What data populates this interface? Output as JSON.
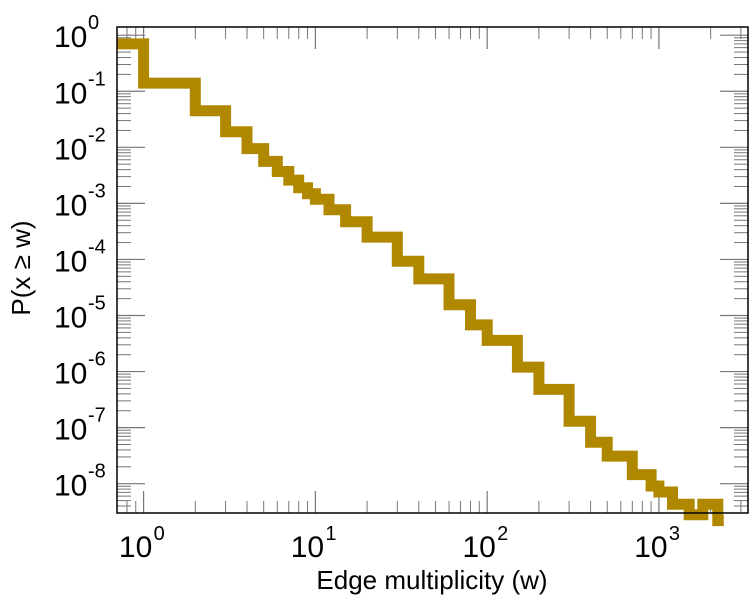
{
  "chart_data": {
    "type": "line",
    "step": true,
    "title": "",
    "xlabel": "Edge multiplicity (w)",
    "ylabel": "P(x ≥ w)",
    "xscale": "log",
    "yscale": "log",
    "xlim": [
      0.7,
      3300
    ],
    "ylim": [
      3e-09,
      1.4
    ],
    "x_ticks": [
      {
        "value": 1,
        "base": "10",
        "exp": "0"
      },
      {
        "value": 10,
        "base": "10",
        "exp": "1"
      },
      {
        "value": 100,
        "base": "10",
        "exp": "2"
      },
      {
        "value": 1000,
        "base": "10",
        "exp": "3"
      }
    ],
    "y_ticks": [
      {
        "value": 1,
        "base": "10",
        "exp": "0"
      },
      {
        "value": 0.1,
        "base": "10",
        "exp": "-1"
      },
      {
        "value": 0.01,
        "base": "10",
        "exp": "-2"
      },
      {
        "value": 0.001,
        "base": "10",
        "exp": "-3"
      },
      {
        "value": 0.0001,
        "base": "10",
        "exp": "-4"
      },
      {
        "value": 1e-05,
        "base": "10",
        "exp": "-5"
      },
      {
        "value": 1e-06,
        "base": "10",
        "exp": "-6"
      },
      {
        "value": 1e-07,
        "base": "10",
        "exp": "-7"
      },
      {
        "value": 1e-08,
        "base": "10",
        "exp": "-8"
      }
    ],
    "grid": false,
    "legend": "none",
    "series": [
      {
        "color": "#b08800",
        "x": [
          0.7,
          1,
          2,
          3,
          4,
          5,
          6,
          7,
          8,
          9,
          10,
          12,
          15,
          20,
          30,
          40,
          60,
          80,
          100,
          150,
          200,
          300,
          400,
          500,
          700,
          900,
          1000,
          1200,
          1500,
          1800,
          2200
        ],
        "y": [
          0.7,
          0.14,
          0.045,
          0.019,
          0.0095,
          0.0056,
          0.0037,
          0.0026,
          0.0019,
          0.00148,
          0.00118,
          0.00077,
          0.00047,
          0.00025,
          9.3e-05,
          4.5e-05,
          1.55e-05,
          6.8e-06,
          3.6e-06,
          1.2e-06,
          4.8e-07,
          1.3e-07,
          5.5e-08,
          3.1e-08,
          1.45e-08,
          9.1e-09,
          7.1e-09,
          4.3e-09,
          2.8e-09,
          4.3e-09,
          2.2e-09
        ]
      }
    ]
  }
}
